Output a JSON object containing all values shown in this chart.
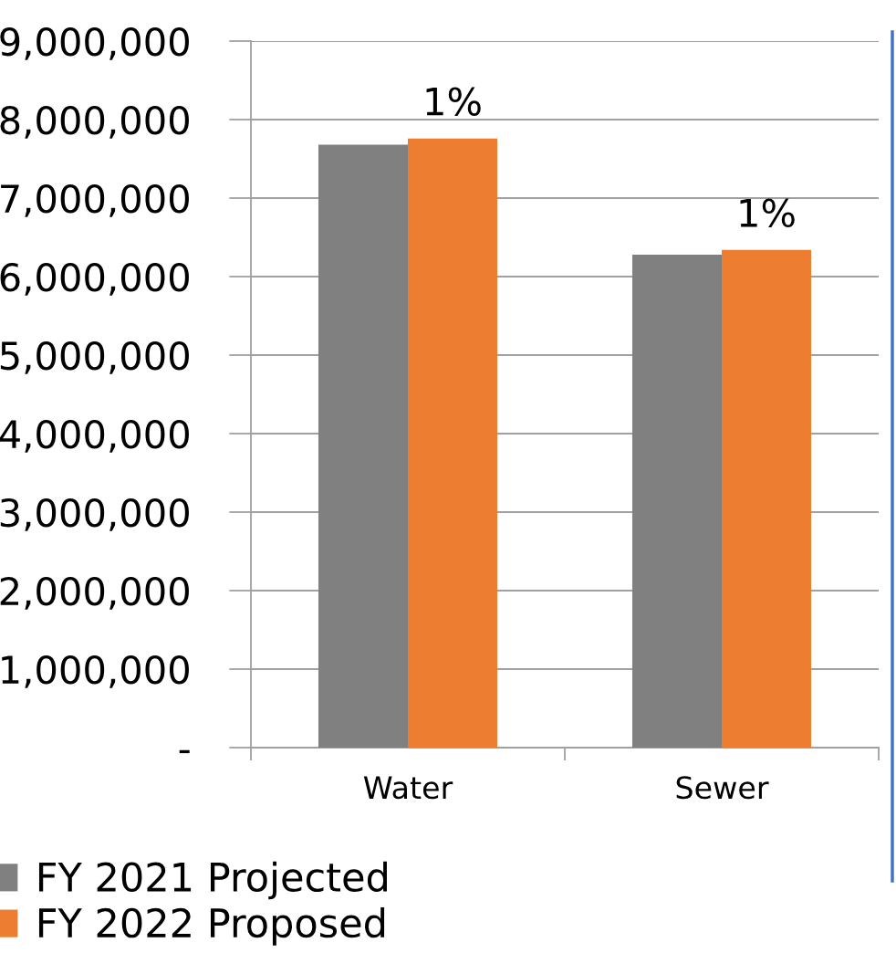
{
  "chart_data": {
    "type": "bar",
    "categories": [
      "Water",
      "Sewer"
    ],
    "series": [
      {
        "name": "FY 2021 Projected",
        "color": "#808080",
        "values": [
          7680000,
          6280000
        ]
      },
      {
        "name": "FY 2022 Proposed",
        "color": "#ed7d31",
        "values": [
          7760000,
          6340000
        ]
      }
    ],
    "annotations": [
      {
        "text": "1%",
        "x": "Water",
        "y": 7760000
      },
      {
        "text": "1%",
        "x": "Sewer",
        "y": 6340000
      }
    ],
    "ylim": [
      0,
      9000000
    ],
    "yticks": [
      {
        "value": 0,
        "label": "-"
      },
      {
        "value": 1000000,
        "label": "1,000,000"
      },
      {
        "value": 2000000,
        "label": "2,000,000"
      },
      {
        "value": 3000000,
        "label": "3,000,000"
      },
      {
        "value": 4000000,
        "label": "4,000,000"
      },
      {
        "value": 5000000,
        "label": "5,000,000"
      },
      {
        "value": 6000000,
        "label": "6,000,000"
      },
      {
        "value": 7000000,
        "label": "7,000,000"
      },
      {
        "value": 8000000,
        "label": "8,000,000"
      },
      {
        "value": 9000000,
        "label": "9,000,000"
      }
    ],
    "grid": "y",
    "legend": "bottom left"
  }
}
